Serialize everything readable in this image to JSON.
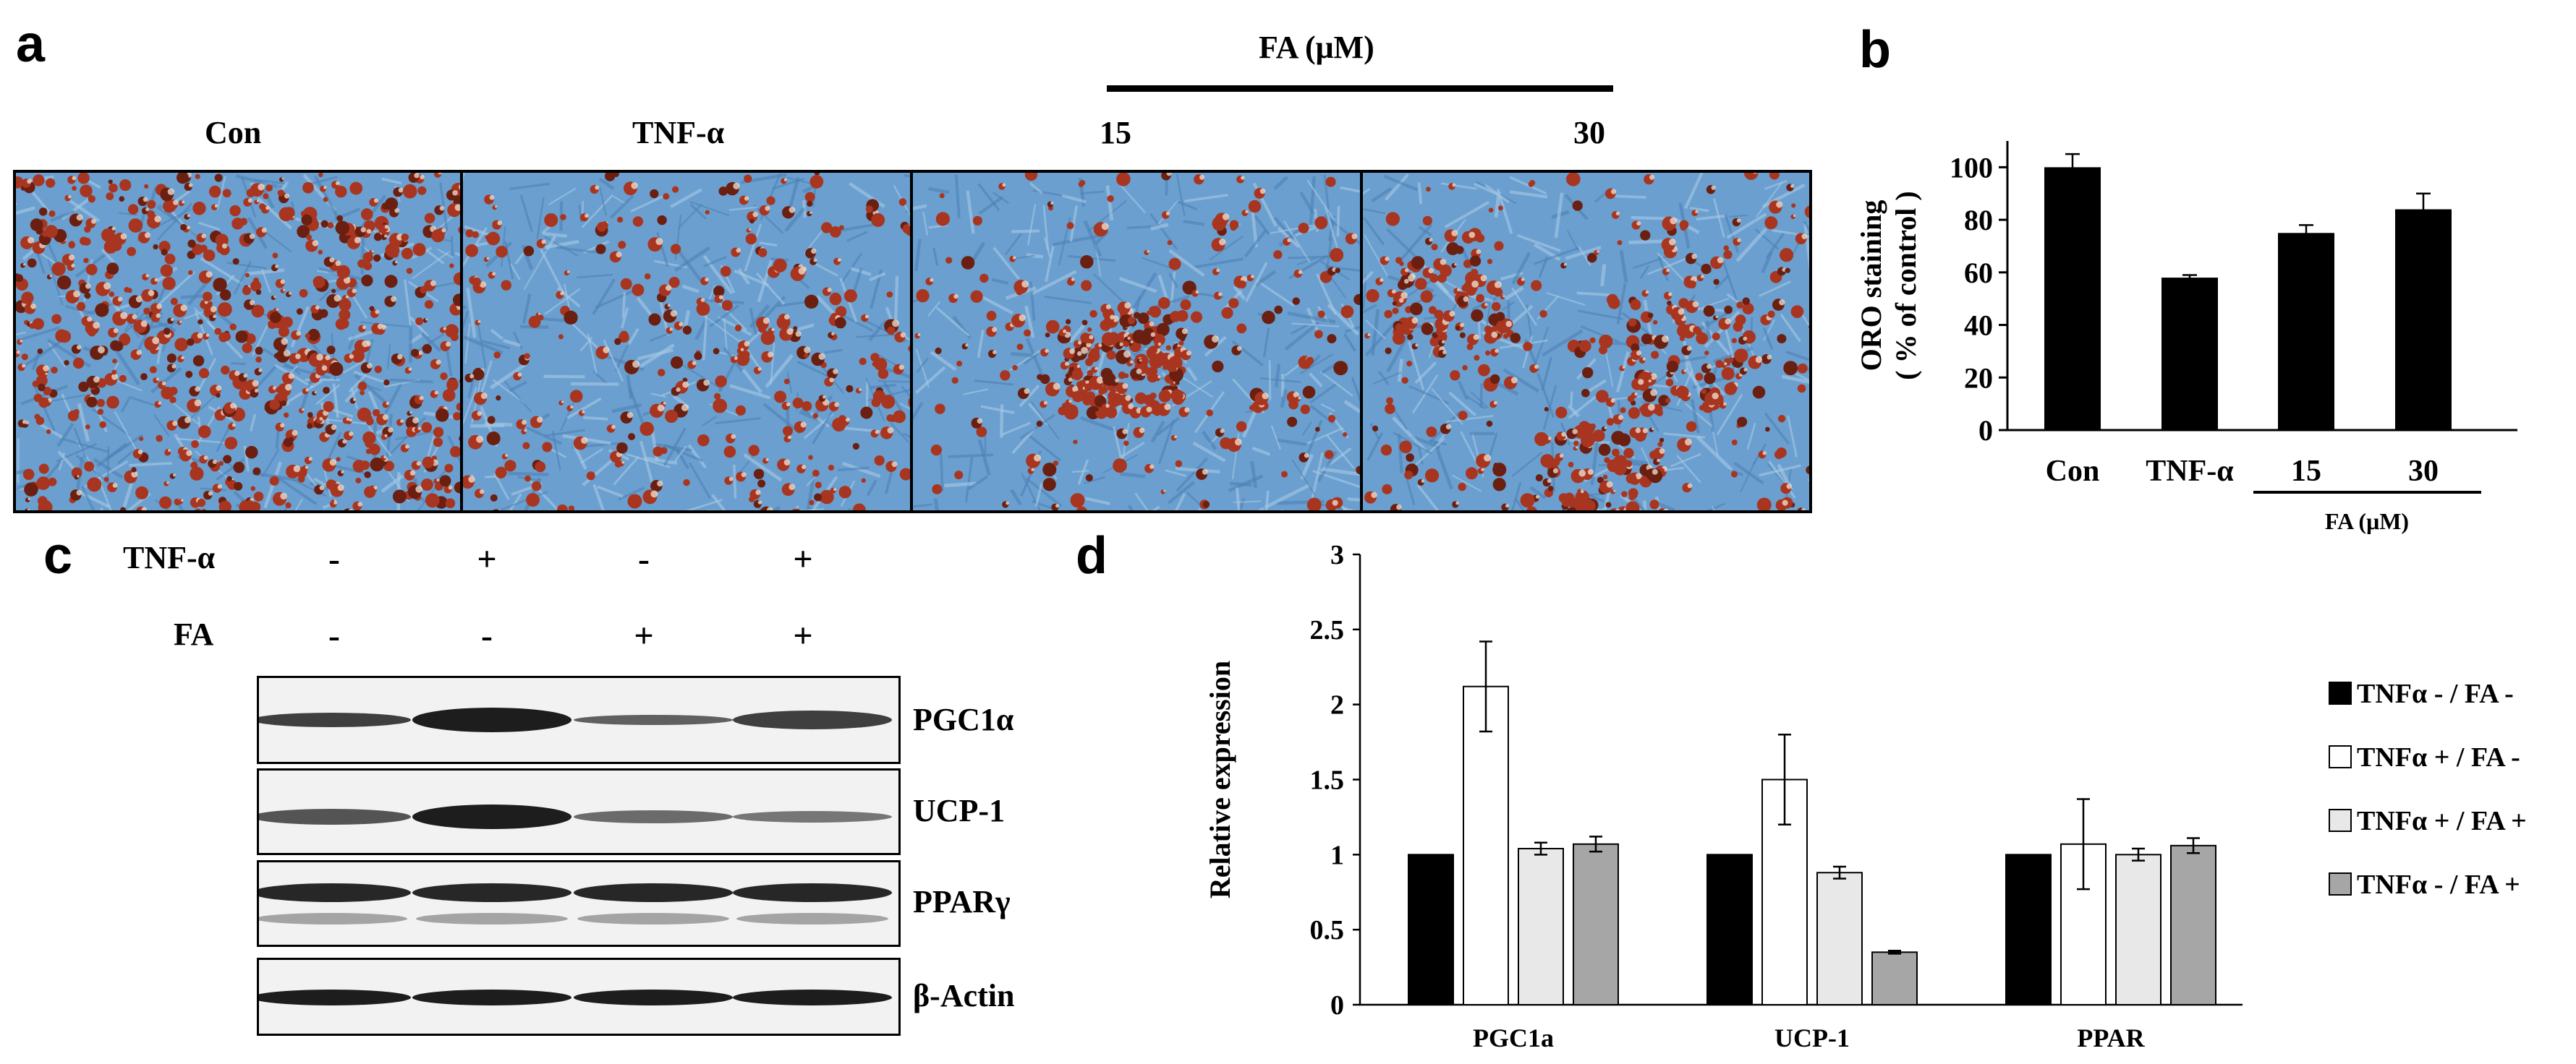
{
  "panel_a": {
    "letter": "a",
    "group_label": "FA (μM)",
    "columns": [
      "Con",
      "TNF-α",
      "15",
      "30"
    ]
  },
  "panel_b": {
    "letter": "b"
  },
  "panel_c": {
    "letter": "c",
    "row_labels": [
      "TNF-α",
      "FA"
    ],
    "tnf_signs": [
      "-",
      "+",
      "-",
      "+"
    ],
    "fa_signs": [
      "-",
      "-",
      "+",
      "+"
    ],
    "blots": [
      "PGC1α",
      "UCP-1",
      "PPARγ",
      "β-Actin"
    ]
  },
  "panel_d": {
    "letter": "d"
  },
  "colors": {
    "black_bar": "#000000",
    "white_bar": "#ffffff",
    "light_gray_bar": "#e8e8e8",
    "gray_bar": "#a6a6a6",
    "microscopy_blue": "#6a9fcf",
    "lipid_red": "#a8351f"
  },
  "chart_data": [
    {
      "panel": "b",
      "type": "bar",
      "categories": [
        "Con",
        "TNF-α",
        "15",
        "30"
      ],
      "values": [
        100,
        58,
        75,
        84
      ],
      "errors": [
        5,
        1,
        3,
        6
      ],
      "ylabel": "ORO staining\n( % of control )",
      "yticks": [
        0,
        20,
        40,
        60,
        80,
        100
      ],
      "ylim": [
        0,
        110
      ],
      "group_label": "FA (μM)",
      "grid": false
    },
    {
      "panel": "d",
      "type": "bar",
      "categories": [
        "PGC1a",
        "UCP-1",
        "PPAR"
      ],
      "series": [
        {
          "name": "TNFα - / FA -",
          "values": [
            1.0,
            1.0,
            1.0
          ],
          "errors": [
            0,
            0,
            0
          ],
          "color": "#000000"
        },
        {
          "name": "TNFα + / FA -",
          "values": [
            2.12,
            1.5,
            1.07
          ],
          "errors": [
            0.3,
            0.3,
            0.3
          ],
          "color": "#ffffff"
        },
        {
          "name": "TNFα + / FA +",
          "values": [
            1.04,
            0.88,
            1.0
          ],
          "errors": [
            0.04,
            0.04,
            0.04
          ],
          "color": "#e8e8e8"
        },
        {
          "name": "TNFα - / FA +",
          "values": [
            1.07,
            0.35,
            1.06
          ],
          "errors": [
            0.05,
            0.01,
            0.05
          ],
          "color": "#a6a6a6"
        }
      ],
      "ylabel": "Relative expression",
      "yticks": [
        0,
        0.5,
        1,
        1.5,
        2,
        2.5,
        3
      ],
      "ylim": [
        0,
        3
      ],
      "legend": "right",
      "grid": false
    }
  ]
}
